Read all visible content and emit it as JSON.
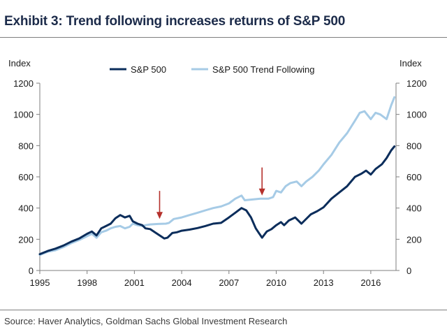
{
  "title": "Exhibit 3: Trend following increases returns of S&P 500",
  "source": "Source: Haver Analytics, Goldman Sachs Global Investment Research",
  "chart_data": {
    "type": "line",
    "xlabel": "",
    "ylabel_left": "Index",
    "ylabel_right": "Index",
    "xlim": [
      1995,
      2017.6
    ],
    "ylim": [
      0,
      1200
    ],
    "x_ticks": [
      "1995",
      "1998",
      "2001",
      "2004",
      "2007",
      "2010",
      "2013",
      "2016"
    ],
    "y_ticks": [
      "0",
      "200",
      "400",
      "600",
      "800",
      "1000",
      "1200"
    ],
    "legend_position": "top-center",
    "colors": {
      "sp500": "#0b2d5b",
      "trend": "#a6cbe6",
      "arrow": "#b5312c",
      "axis": "#7f7f7f"
    },
    "annotations": [
      {
        "type": "arrow",
        "x": 2002.6,
        "y_from": 510,
        "y_to": 330,
        "label": ""
      },
      {
        "type": "arrow",
        "x": 2009.1,
        "y_from": 660,
        "y_to": 480,
        "label": ""
      }
    ],
    "series": [
      {
        "name": "S&P 500",
        "x": [
          1995,
          1995.5,
          1996,
          1996.5,
          1997,
          1997.5,
          1998,
          1998.3,
          1998.6,
          1998.9,
          1999.2,
          1999.5,
          1999.8,
          2000.1,
          2000.4,
          2000.7,
          2000.9,
          2001.2,
          2001.5,
          2001.7,
          2002.0,
          2002.3,
          2002.6,
          2002.9,
          2003.1,
          2003.4,
          2003.7,
          2004.0,
          2004.5,
          2005.0,
          2005.5,
          2006.0,
          2006.5,
          2007.0,
          2007.4,
          2007.8,
          2008.1,
          2008.4,
          2008.7,
          2008.9,
          2009.1,
          2009.4,
          2009.7,
          2010.0,
          2010.3,
          2010.5,
          2010.8,
          2011.2,
          2011.6,
          2011.8,
          2012.2,
          2012.6,
          2013.0,
          2013.5,
          2014.0,
          2014.5,
          2015.0,
          2015.4,
          2015.7,
          2016.0,
          2016.3,
          2016.7,
          2017.0,
          2017.3,
          2017.5
        ],
        "values": [
          105,
          125,
          140,
          160,
          185,
          205,
          235,
          250,
          225,
          270,
          285,
          300,
          335,
          355,
          340,
          350,
          315,
          300,
          290,
          270,
          265,
          245,
          225,
          205,
          210,
          240,
          245,
          255,
          262,
          272,
          285,
          300,
          305,
          340,
          370,
          400,
          385,
          340,
          270,
          240,
          210,
          250,
          265,
          290,
          310,
          290,
          320,
          340,
          300,
          320,
          360,
          380,
          405,
          460,
          500,
          540,
          600,
          620,
          640,
          615,
          650,
          680,
          720,
          770,
          795
        ]
      },
      {
        "name": "S&P 500 Trend Following",
        "x": [
          1995,
          1995.5,
          1996,
          1996.5,
          1997,
          1997.5,
          1998,
          1998.3,
          1998.6,
          1998.9,
          1999.2,
          1999.5,
          1999.8,
          2000.1,
          2000.4,
          2000.7,
          2000.9,
          2001.2,
          2001.5,
          2001.7,
          2002.0,
          2002.5,
          2003.0,
          2003.2,
          2003.5,
          2004.0,
          2004.5,
          2005.0,
          2005.5,
          2006.0,
          2006.5,
          2007.0,
          2007.4,
          2007.8,
          2008.0,
          2008.5,
          2009.0,
          2009.5,
          2009.8,
          2010.0,
          2010.3,
          2010.6,
          2010.9,
          2011.3,
          2011.6,
          2011.9,
          2012.3,
          2012.7,
          2013.0,
          2013.5,
          2014.0,
          2014.5,
          2015.0,
          2015.3,
          2015.6,
          2016.0,
          2016.3,
          2016.6,
          2017.0,
          2017.3,
          2017.5
        ],
        "values": [
          100,
          120,
          130,
          150,
          175,
          195,
          220,
          235,
          210,
          245,
          255,
          270,
          280,
          285,
          270,
          280,
          300,
          290,
          285,
          290,
          295,
          298,
          300,
          305,
          330,
          340,
          355,
          370,
          385,
          400,
          410,
          430,
          460,
          480,
          450,
          455,
          460,
          460,
          470,
          510,
          500,
          540,
          560,
          570,
          540,
          570,
          600,
          640,
          680,
          740,
          820,
          880,
          960,
          1010,
          1020,
          970,
          1010,
          1000,
          970,
          1060,
          1110
        ]
      }
    ]
  }
}
